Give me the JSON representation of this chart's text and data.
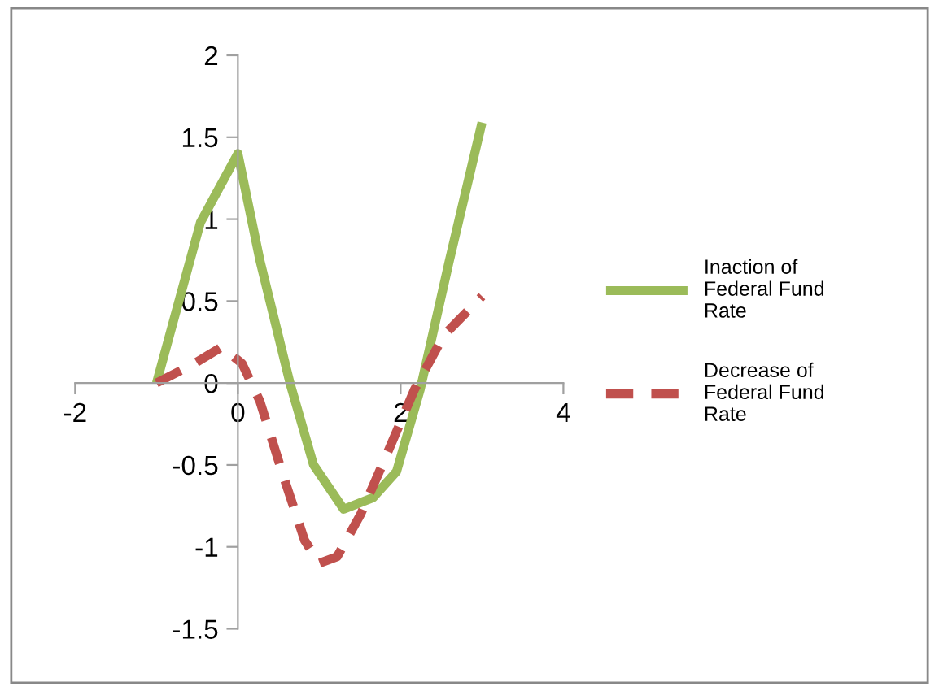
{
  "chart_data": {
    "type": "line",
    "xlim": [
      -2,
      4
    ],
    "ylim": [
      -1.5,
      2
    ],
    "xticks": [
      -2,
      0,
      2,
      4
    ],
    "yticks": [
      -1.5,
      -1,
      -0.5,
      0,
      0.5,
      1,
      1.5,
      2
    ],
    "grid": false,
    "legend": "right",
    "marker": "none",
    "series": [
      {
        "name": "Inaction of\nFederal Fund\nRate",
        "color": "#9bbb59",
        "line_style": "solid",
        "x": [
          -1,
          -0.46,
          0,
          0.27,
          0.64,
          0.93,
          1.3,
          1.66,
          1.95,
          2.24,
          2.6,
          3
        ],
        "values": [
          0,
          0.98,
          1.4,
          0.75,
          0,
          -0.5,
          -0.77,
          -0.7,
          -0.54,
          -0.04,
          0.75,
          1.59
        ]
      },
      {
        "name": "Decrease of\nFederal Fund\nRate",
        "color": "#c0504d",
        "line_style": "dashed",
        "x": [
          -1,
          -0.53,
          -0.2,
          0.05,
          0.27,
          0.56,
          0.82,
          1.0,
          1.22,
          1.51,
          1.8,
          2.17,
          2.53,
          3
        ],
        "values": [
          0,
          0.12,
          0.22,
          0.12,
          -0.11,
          -0.57,
          -0.96,
          -1.1,
          -1.06,
          -0.8,
          -0.47,
          -0.04,
          0.29,
          0.53
        ]
      }
    ]
  }
}
